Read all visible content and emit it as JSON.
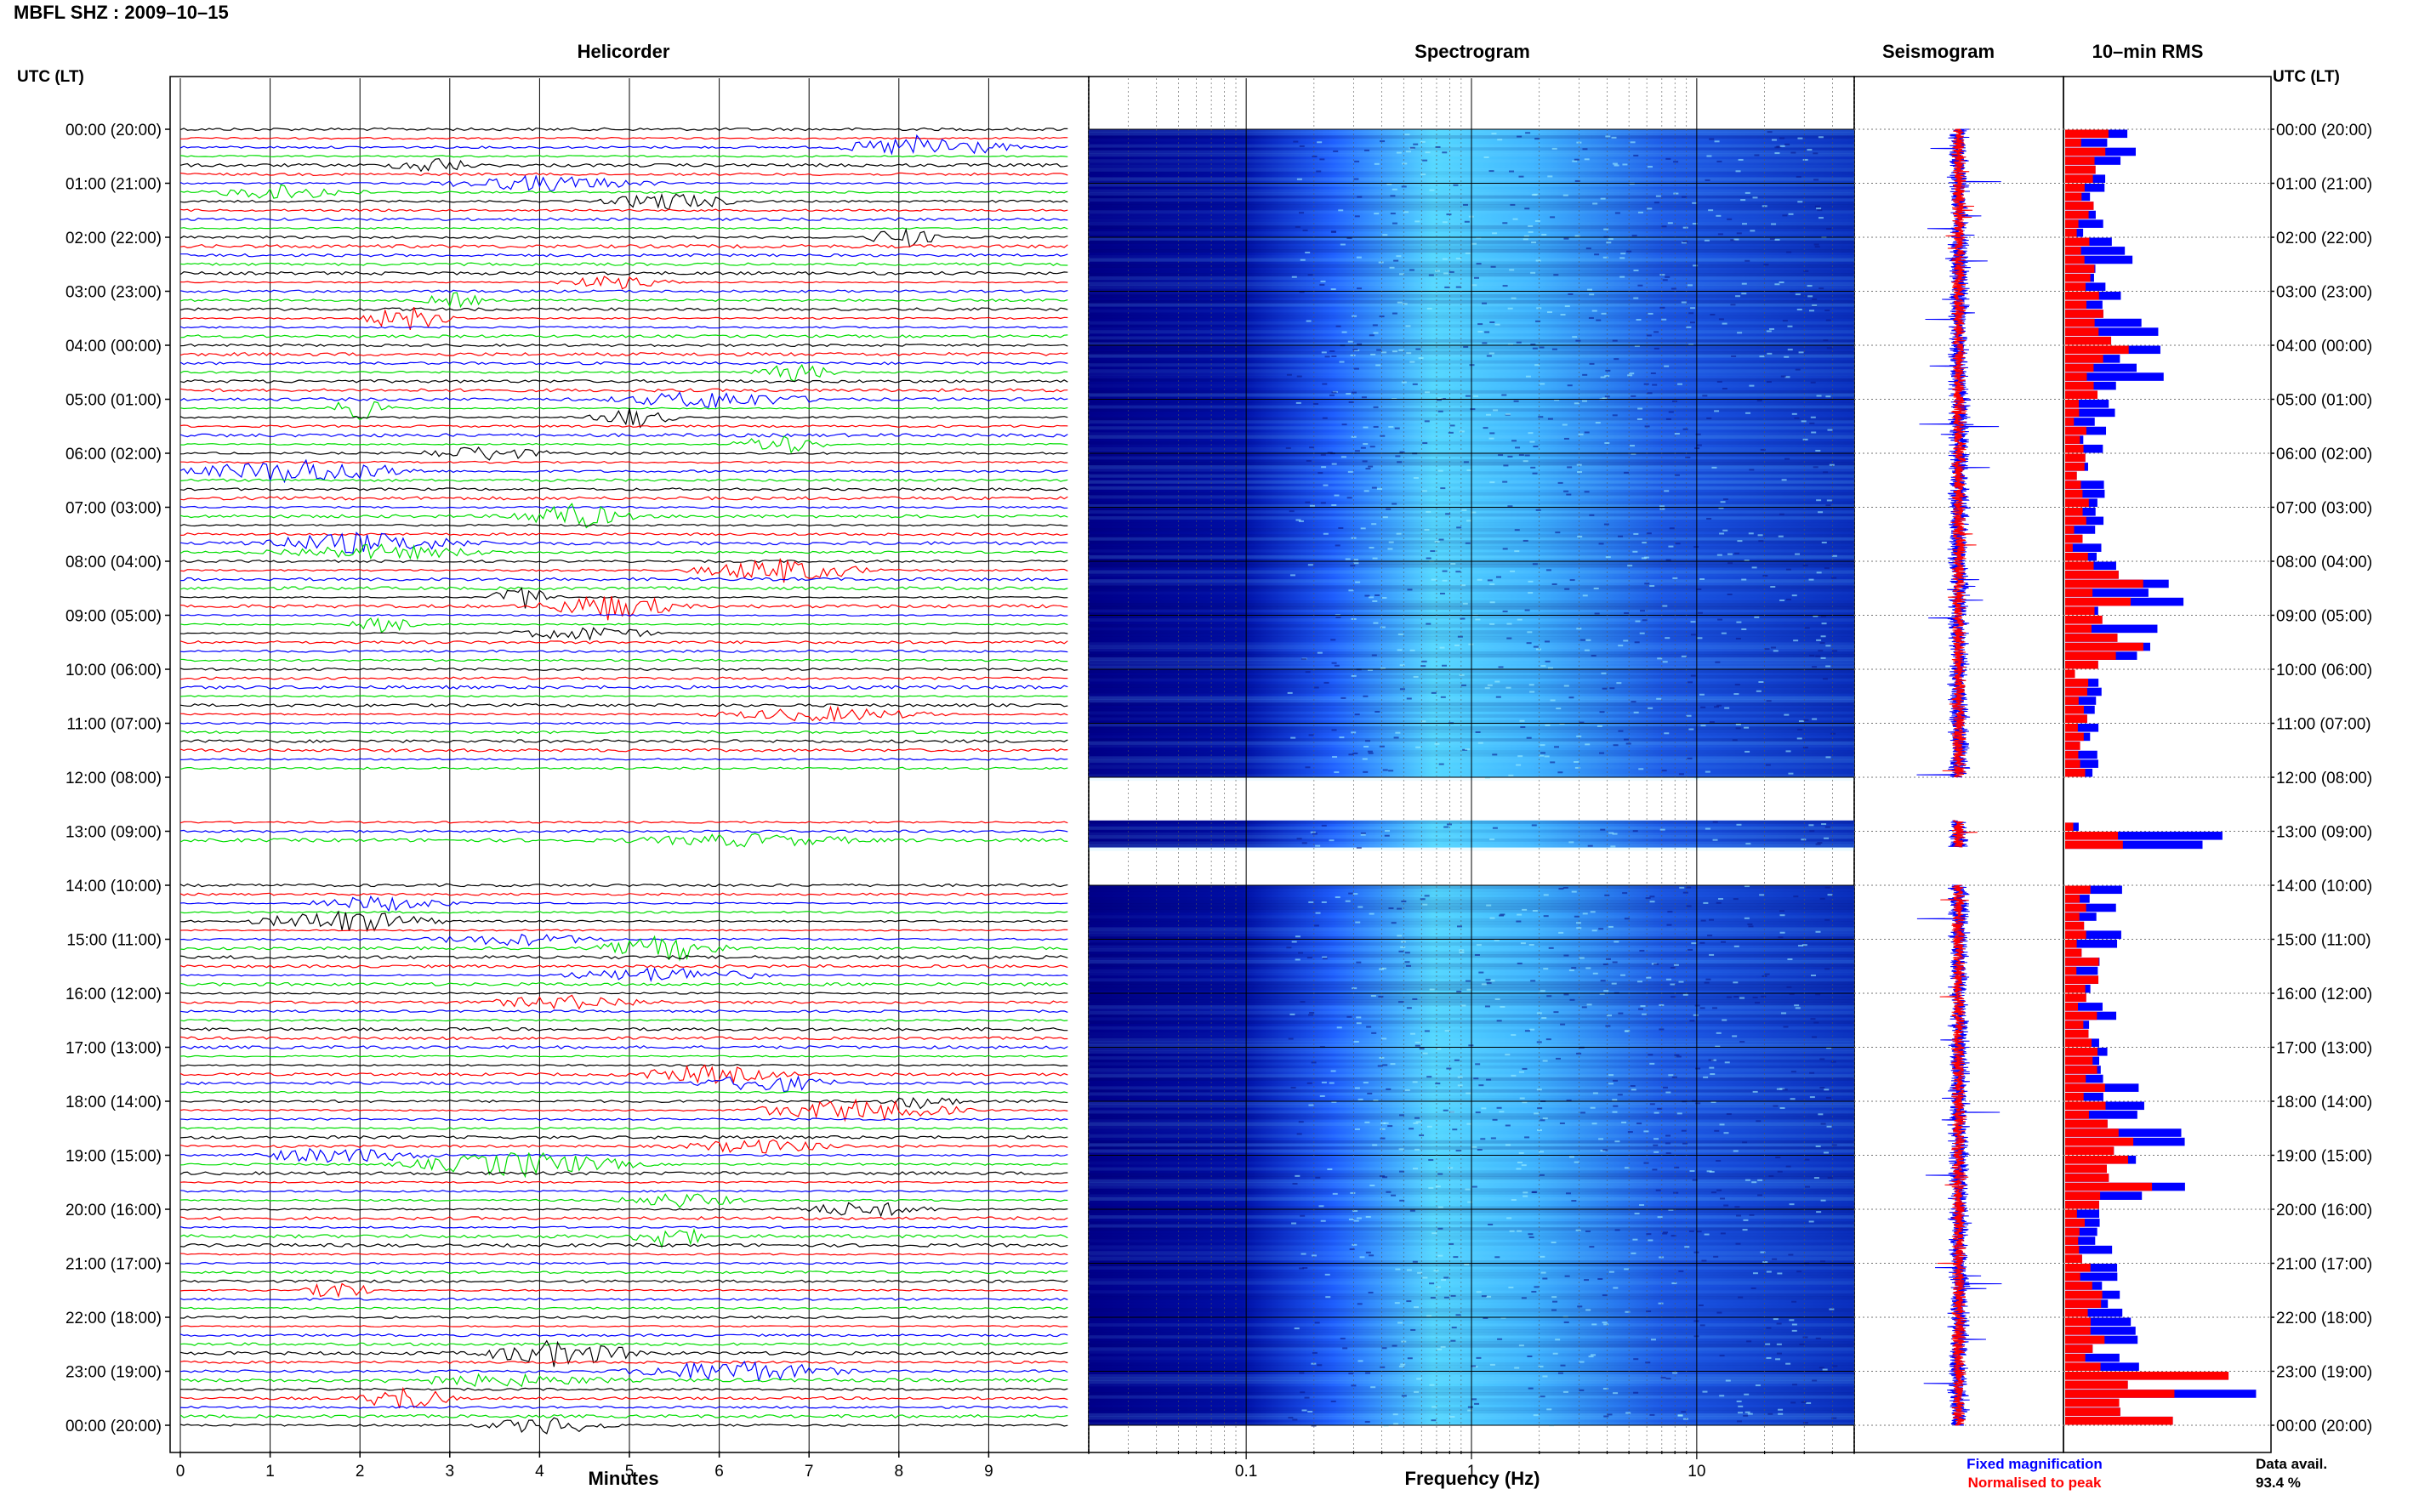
{
  "title": "MBFL SHZ : 2009–10–15",
  "panels": {
    "helicorder": "Helicorder",
    "spectrogram": "Spectrogram",
    "seismogram": "Seismogram",
    "rms": "10–min RMS"
  },
  "time_axis_label": "UTC (LT)",
  "x_label_helicorder": "Minutes",
  "x_label_spectrogram": "Frequency (Hz)",
  "legend": {
    "fixed": "Fixed magnification",
    "normalised": "Normalised to peak",
    "fixed_color": "#0000ff",
    "normalised_color": "#ff0000"
  },
  "data_availability": {
    "label": "Data avail.",
    "value": "93.4 %"
  },
  "colors": {
    "trace_cycle": [
      "#000000",
      "#ff0000",
      "#0000ff",
      "#00dd00"
    ],
    "spectrogram_low": "#00008b",
    "spectrogram_mid": "#1f5fff",
    "spectrogram_high": "#55d8ff"
  },
  "chart_data": [
    {
      "type": "line",
      "name": "Helicorder",
      "y_tick_labels": [
        "00:00 (20:00)",
        "01:00 (21:00)",
        "02:00 (22:00)",
        "03:00 (23:00)",
        "04:00 (00:00)",
        "05:00 (01:00)",
        "06:00 (02:00)",
        "07:00 (03:00)",
        "08:00 (04:00)",
        "09:00 (05:00)",
        "10:00 (06:00)",
        "11:00 (07:00)",
        "12:00 (08:00)",
        "13:00 (09:00)",
        "14:00 (10:00)",
        "15:00 (11:00)",
        "16:00 (12:00)",
        "17:00 (13:00)",
        "18:00 (14:00)",
        "19:00 (15:00)",
        "20:00 (16:00)",
        "21:00 (17:00)",
        "22:00 (18:00)",
        "23:00 (19:00)",
        "00:00 (20:00)"
      ],
      "x_ticks": [
        "0",
        "1",
        "2",
        "3",
        "4",
        "5",
        "6",
        "7",
        "8",
        "9"
      ],
      "xlim": [
        0,
        10
      ],
      "xlabel": "Minutes",
      "rows_per_hour": 6,
      "gaps_utc_hours": [
        [
          12.0,
          12.8
        ],
        [
          13.3,
          14.0
        ]
      ]
    },
    {
      "type": "heatmap",
      "name": "Spectrogram",
      "x_scale": "log",
      "xlim": [
        0.02,
        50
      ],
      "x_ticks": [
        "0.1",
        "1",
        "10"
      ],
      "xlabel": "Frequency (Hz)",
      "gaps_utc_hours": [
        [
          12.0,
          12.8
        ],
        [
          13.3,
          14.0
        ]
      ]
    },
    {
      "type": "line",
      "name": "Seismogram",
      "series": [
        {
          "name": "Fixed magnification",
          "color": "#0000ff"
        },
        {
          "name": "Normalised to peak",
          "color": "#ff0000"
        }
      ]
    },
    {
      "type": "bar",
      "name": "10–min RMS",
      "series": [
        {
          "name": "Fixed magnification",
          "color": "#0000ff",
          "hourly_max": [
            0.35,
            0.22,
            0.35,
            0.48,
            0.52,
            0.25,
            0.22,
            0.2,
            0.6,
            0.62,
            0.18,
            0.2,
            0.18,
            0.98,
            0.32,
            0.3,
            0.28,
            0.36,
            0.6,
            0.58,
            0.26,
            0.32,
            0.38,
            0.98
          ]
        },
        {
          "name": "Normalised to peak",
          "color": "#ff0000",
          "hourly_max": [
            0.22,
            0.15,
            0.2,
            0.3,
            0.32,
            0.12,
            0.12,
            0.12,
            0.4,
            0.38,
            0.16,
            0.12,
            0.1,
            0.55,
            0.2,
            0.18,
            0.2,
            0.2,
            0.35,
            0.42,
            0.14,
            0.2,
            0.22,
            0.98
          ]
        }
      ],
      "data_availability": "93.4 %"
    }
  ]
}
